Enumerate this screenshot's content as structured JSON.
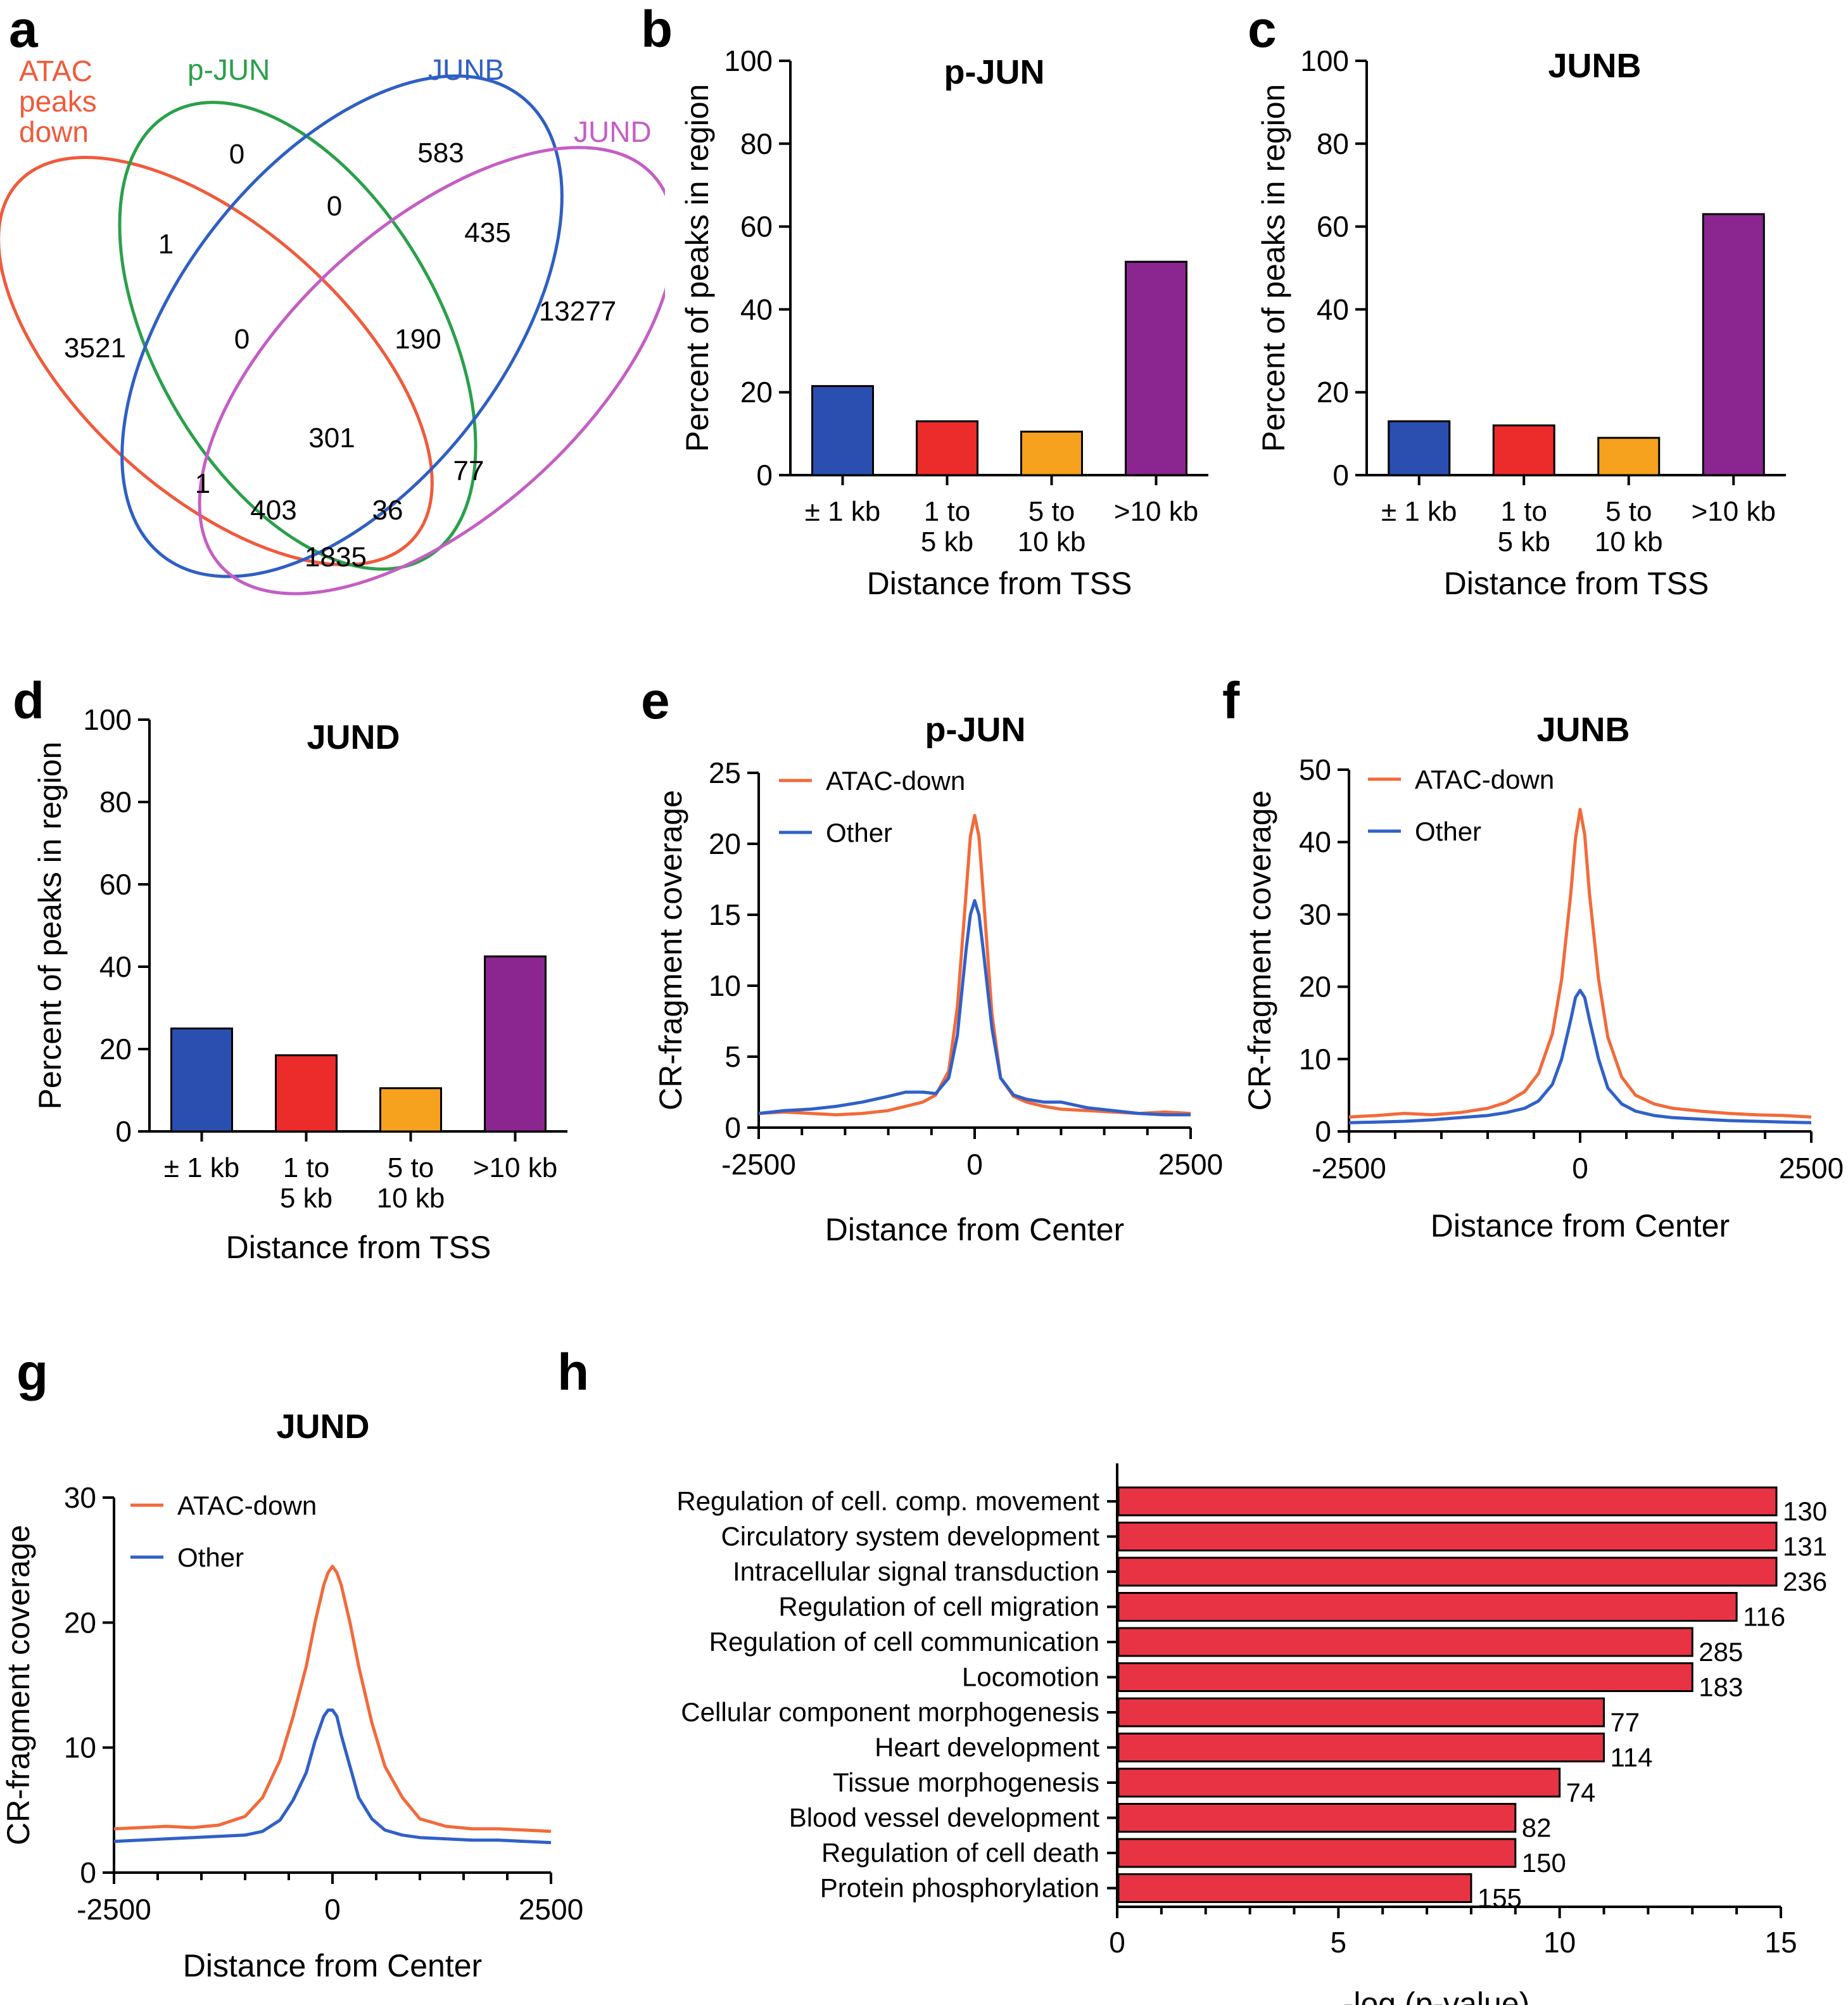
{
  "panel_letters": {
    "a": "a",
    "b": "b",
    "c": "c",
    "d": "d",
    "e": "e",
    "f": "f",
    "g": "g",
    "h": "h"
  },
  "colors": {
    "atac": "#f05a3c",
    "pjun": "#2aa04a",
    "junb": "#2f5fc4",
    "jund": "#c45ec4",
    "bar_blue": "#2a4fb0",
    "bar_red": "#ec2b2b",
    "bar_orange": "#f6a21e",
    "bar_purple": "#8b2590",
    "line_orange": "#f26a3a",
    "line_blue": "#3060c8",
    "go_bar": "#e83345"
  },
  "venn": {
    "sets": {
      "atac_line1": "ATAC",
      "atac_line2": "peaks",
      "atac_line3": "down",
      "pjun": "p-JUN",
      "junb": "JUNB",
      "jund": "JUND"
    },
    "counts": {
      "pjun_only": "0",
      "junb_only": "583",
      "pjun_junb": "0",
      "pjun_atac": "1",
      "junb_jund": "435",
      "jund_only": "13277",
      "atac_only": "3521",
      "atac_pjun_junb": "0",
      "pjun_junb_jund": "190",
      "all_four": "301",
      "pjun_jund": "77",
      "atac_junb": "1",
      "atac_junb_jund": "403",
      "atac_pjun_jund": "36",
      "atac_jund": "1835"
    }
  },
  "chart_data": [
    {
      "id": "b",
      "type": "bar",
      "title": "p-JUN",
      "categories": [
        [
          "± 1 kb"
        ],
        [
          "1 to",
          "5 kb"
        ],
        [
          "5 to",
          "10 kb"
        ],
        [
          ">10 kb"
        ]
      ],
      "values": [
        21.5,
        13,
        10.5,
        51.5
      ],
      "ylim": [
        0,
        100
      ],
      "yticks": [
        0,
        20,
        40,
        60,
        80,
        100
      ],
      "xlabel": "Distance from TSS",
      "ylabel": "Percent of peaks in region"
    },
    {
      "id": "c",
      "type": "bar",
      "title": "JUNB",
      "categories": [
        [
          "± 1 kb"
        ],
        [
          "1 to",
          "5 kb"
        ],
        [
          "5 to",
          "10 kb"
        ],
        [
          ">10 kb"
        ]
      ],
      "values": [
        13,
        12,
        9,
        63
      ],
      "ylim": [
        0,
        100
      ],
      "yticks": [
        0,
        20,
        40,
        60,
        80,
        100
      ],
      "xlabel": "Distance from TSS",
      "ylabel": "Percent of peaks in region"
    },
    {
      "id": "d",
      "type": "bar",
      "title": "JUND",
      "categories": [
        [
          "± 1 kb"
        ],
        [
          "1 to",
          "5 kb"
        ],
        [
          "5 to",
          "10 kb"
        ],
        [
          ">10 kb"
        ]
      ],
      "values": [
        25,
        18.5,
        10.5,
        42.5
      ],
      "ylim": [
        0,
        100
      ],
      "yticks": [
        0,
        20,
        40,
        60,
        80,
        100
      ],
      "xlabel": "Distance from TSS",
      "ylabel": "Percent of peaks in region"
    },
    {
      "id": "e",
      "type": "line",
      "title": "p-JUN",
      "xlim": [
        -2500,
        2500
      ],
      "ylim": [
        0,
        25
      ],
      "yticks": [
        0,
        5,
        10,
        15,
        20,
        25
      ],
      "xticks": [
        -2500,
        0,
        2500
      ],
      "xlabel": "Distance from Center",
      "ylabel": "CR-fragment coverage",
      "series": [
        {
          "name": "ATAC-down",
          "x": [
            -2500,
            -2200,
            -1900,
            -1600,
            -1300,
            -1000,
            -800,
            -600,
            -450,
            -300,
            -200,
            -100,
            -50,
            0,
            50,
            100,
            200,
            300,
            450,
            600,
            800,
            1000,
            1300,
            1600,
            1900,
            2200,
            2500
          ],
          "y": [
            1.0,
            1.1,
            1.0,
            0.9,
            1.0,
            1.2,
            1.5,
            1.8,
            2.3,
            4.0,
            8.5,
            16.5,
            20.5,
            22.0,
            20.5,
            16.5,
            8.0,
            3.5,
            2.2,
            1.8,
            1.5,
            1.3,
            1.2,
            1.1,
            1.0,
            1.1,
            1.0
          ]
        },
        {
          "name": "Other",
          "x": [
            -2500,
            -2200,
            -1900,
            -1600,
            -1300,
            -1000,
            -800,
            -600,
            -450,
            -300,
            -200,
            -100,
            -50,
            0,
            50,
            100,
            200,
            300,
            450,
            600,
            800,
            1000,
            1300,
            1600,
            1900,
            2200,
            2500
          ],
          "y": [
            1.0,
            1.2,
            1.3,
            1.5,
            1.8,
            2.2,
            2.5,
            2.5,
            2.4,
            3.5,
            6.5,
            12.5,
            15.0,
            16.0,
            15.0,
            12.5,
            7.0,
            3.5,
            2.3,
            2.0,
            1.8,
            1.8,
            1.4,
            1.2,
            1.0,
            0.9,
            0.9
          ]
        }
      ]
    },
    {
      "id": "f",
      "type": "line",
      "title": "JUNB",
      "xlim": [
        -2500,
        2500
      ],
      "ylim": [
        0,
        50
      ],
      "yticks": [
        0,
        10,
        20,
        30,
        40,
        50
      ],
      "xticks": [
        -2500,
        0,
        2500
      ],
      "xlabel": "Distance from Center",
      "ylabel": "CR-fragment coverage",
      "series": [
        {
          "name": "ATAC-down",
          "x": [
            -2500,
            -2200,
            -1900,
            -1600,
            -1300,
            -1000,
            -800,
            -600,
            -450,
            -300,
            -200,
            -100,
            -50,
            0,
            50,
            100,
            200,
            300,
            450,
            600,
            800,
            1000,
            1300,
            1600,
            1900,
            2200,
            2500
          ],
          "y": [
            2.0,
            2.2,
            2.5,
            2.3,
            2.6,
            3.2,
            4.0,
            5.5,
            8.0,
            13.5,
            21.0,
            33.0,
            40.5,
            44.5,
            41.0,
            33.0,
            21.0,
            13.0,
            7.5,
            5.0,
            3.8,
            3.2,
            2.8,
            2.5,
            2.3,
            2.2,
            2.0
          ]
        },
        {
          "name": "Other",
          "x": [
            -2500,
            -2200,
            -1900,
            -1600,
            -1300,
            -1000,
            -800,
            -600,
            -450,
            -300,
            -200,
            -100,
            -50,
            0,
            50,
            100,
            200,
            300,
            450,
            600,
            800,
            1000,
            1300,
            1600,
            1900,
            2200,
            2500
          ],
          "y": [
            1.2,
            1.3,
            1.4,
            1.6,
            1.9,
            2.2,
            2.6,
            3.2,
            4.2,
            6.5,
            10.0,
            15.5,
            18.5,
            19.5,
            18.5,
            15.5,
            10.0,
            6.0,
            3.8,
            2.8,
            2.2,
            1.9,
            1.7,
            1.5,
            1.4,
            1.3,
            1.2
          ]
        }
      ]
    },
    {
      "id": "g",
      "type": "line",
      "title": "JUND",
      "xlim": [
        -2500,
        2500
      ],
      "ylim": [
        0,
        30
      ],
      "yticks": [
        0,
        10,
        20,
        30
      ],
      "xticks": [
        -2500,
        0,
        2500
      ],
      "xlabel": "Distance from Center",
      "ylabel": "CR-fragment coverage",
      "series": [
        {
          "name": "ATAC-down",
          "x": [
            -2500,
            -2200,
            -1900,
            -1600,
            -1300,
            -1000,
            -800,
            -600,
            -450,
            -300,
            -200,
            -100,
            -50,
            0,
            50,
            100,
            200,
            300,
            450,
            600,
            800,
            1000,
            1300,
            1600,
            1900,
            2200,
            2500
          ],
          "y": [
            3.5,
            3.6,
            3.7,
            3.6,
            3.8,
            4.5,
            6.0,
            9.0,
            12.5,
            16.5,
            20.0,
            23.0,
            24.0,
            24.5,
            24.0,
            23.0,
            20.0,
            16.5,
            12.0,
            8.5,
            6.0,
            4.3,
            3.7,
            3.5,
            3.5,
            3.4,
            3.3
          ]
        },
        {
          "name": "Other",
          "x": [
            -2500,
            -2200,
            -1900,
            -1600,
            -1300,
            -1000,
            -800,
            -600,
            -450,
            -300,
            -200,
            -100,
            -50,
            0,
            50,
            100,
            200,
            300,
            450,
            600,
            800,
            1000,
            1300,
            1600,
            1900,
            2200,
            2500
          ],
          "y": [
            2.5,
            2.6,
            2.7,
            2.8,
            2.9,
            3.0,
            3.3,
            4.2,
            5.8,
            8.0,
            10.5,
            12.5,
            13.0,
            13.0,
            12.5,
            11.0,
            8.5,
            6.0,
            4.3,
            3.4,
            3.0,
            2.8,
            2.7,
            2.6,
            2.6,
            2.5,
            2.4
          ]
        }
      ]
    },
    {
      "id": "h",
      "type": "bar",
      "orientation": "horizontal",
      "categories": [
        "Regulation of cell. comp. movement",
        "Circulatory system development",
        "Intracellular signal transduction",
        "Regulation of cell migration",
        "Regulation of cell communication",
        "Locomotion",
        "Cellular component morphogenesis",
        "Heart development",
        "Tissue morphogenesis",
        "Blood vessel development",
        "Regulation of cell death",
        "Protein phosphorylation"
      ],
      "values": [
        14.9,
        14.9,
        14.9,
        14.0,
        13.0,
        13.0,
        11.0,
        11.0,
        10.0,
        9.0,
        9.0,
        8.0
      ],
      "labels": [
        "130",
        "131",
        "236",
        "116",
        "285",
        "183",
        "77",
        "114",
        "74",
        "82",
        "150",
        "155"
      ],
      "xlim": [
        0,
        15
      ],
      "xticks": [
        0,
        5,
        10,
        15
      ],
      "xlabel": "-log (p-value)"
    }
  ]
}
